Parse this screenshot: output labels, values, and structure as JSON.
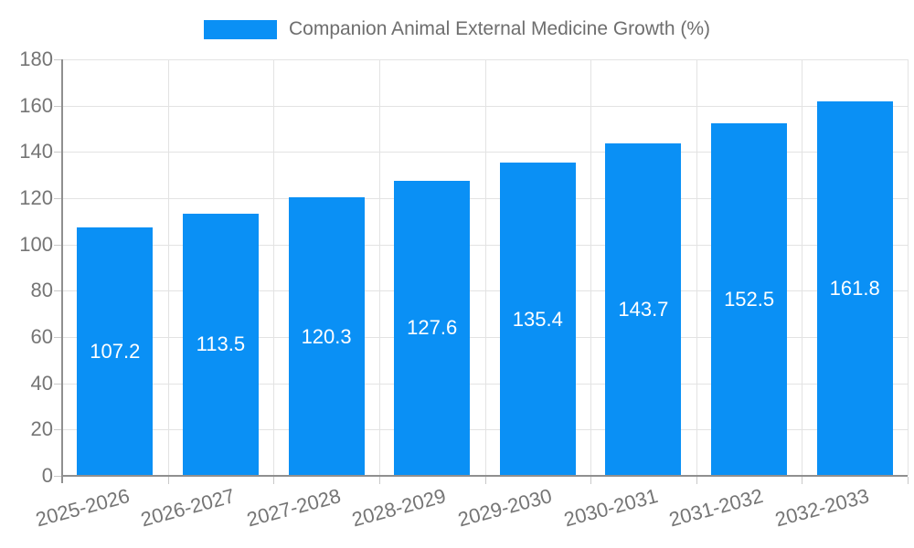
{
  "colors": {
    "background": "#ffffff",
    "bar": "#0a90f5",
    "grid": "#e3e3e3",
    "axis": "#8f8f8f",
    "tick": "#c9c9c9",
    "tick_text": "#757575",
    "legend_text": "#6e6e6e",
    "value_label": "#ffffff"
  },
  "chart_data": {
    "type": "bar",
    "title": "Companion Animal External Medicine Growth (%)",
    "legend_position": "top-center",
    "categories": [
      "2025-2026",
      "2026-2027",
      "2027-2028",
      "2028-2029",
      "2029-2030",
      "2030-2031",
      "2031-2032",
      "2032-2033"
    ],
    "values": [
      107.2,
      113.5,
      120.3,
      127.6,
      135.4,
      143.7,
      152.5,
      161.8
    ],
    "value_labels": [
      "107.2",
      "113.5",
      "120.3",
      "127.6",
      "135.4",
      "143.7",
      "152.5",
      "161.8"
    ],
    "xlabel": "",
    "ylabel": "",
    "ylim": [
      0,
      180
    ],
    "yticks": [
      0,
      20,
      40,
      60,
      80,
      100,
      120,
      140,
      160,
      180
    ],
    "grid": true,
    "bar_labels_position": "inside-center"
  }
}
